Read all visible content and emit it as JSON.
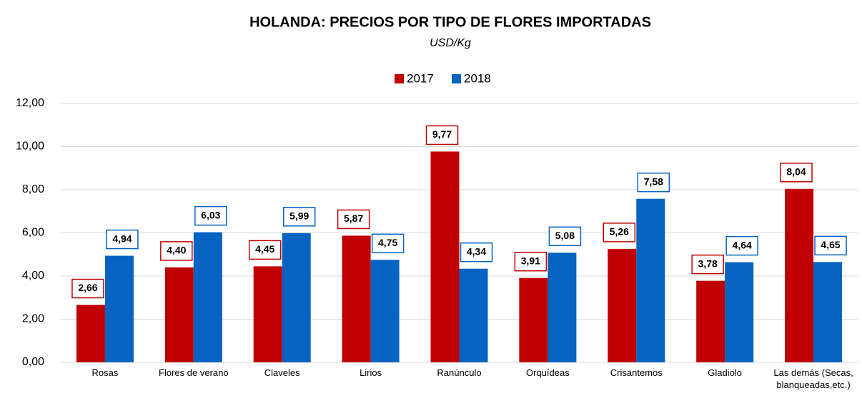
{
  "chart_data": {
    "type": "bar",
    "title": "HOLANDA: PRECIOS POR TIPO DE FLORES IMPORTADAS",
    "subtitle": "USD/Kg",
    "categories": [
      "Rosas",
      "Flores de verano",
      "Claveles",
      "Lirios",
      "Ranúnculo",
      "Orquídeas",
      "Crisantemos",
      "Gladiolo",
      "Las demás (Secas, blanqueadas,etc.)"
    ],
    "series": [
      {
        "name": "2017",
        "color": "#c00000",
        "values": [
          2.66,
          4.4,
          4.45,
          5.87,
          9.77,
          3.91,
          5.26,
          3.78,
          8.04
        ],
        "value_labels": [
          "2,66",
          "4,40",
          "4,45",
          "5,87",
          "9,77",
          "3,91",
          "5,26",
          "3,78",
          "8,04"
        ]
      },
      {
        "name": "2018",
        "color": "#0563c1",
        "values": [
          4.94,
          6.03,
          5.99,
          4.75,
          4.34,
          5.08,
          7.58,
          4.64,
          4.65
        ],
        "value_labels": [
          "4,94",
          "6,03",
          "5,99",
          "4,75",
          "4,34",
          "5,08",
          "7,58",
          "4,64",
          "4,65"
        ]
      }
    ],
    "ylim": [
      0,
      12
    ],
    "yticks": [
      {
        "value": 0,
        "label": "0,00"
      },
      {
        "value": 2,
        "label": "2,00"
      },
      {
        "value": 4,
        "label": "4,00"
      },
      {
        "value": 6,
        "label": "6,00"
      },
      {
        "value": 8,
        "label": "8,00"
      },
      {
        "value": 10,
        "label": "10,00"
      },
      {
        "value": 12,
        "label": "12,00"
      }
    ],
    "grid": true,
    "legend": "top"
  }
}
